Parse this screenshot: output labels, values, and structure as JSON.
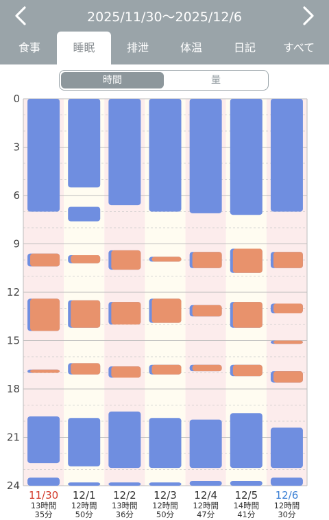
{
  "header": {
    "date_range": "2025/11/30〜2025/12/6",
    "prev_icon": "chevron-left-icon",
    "next_icon": "chevron-right-icon",
    "background": "#9aa4a9"
  },
  "tabs": [
    {
      "label": "食事",
      "active": false
    },
    {
      "label": "睡眠",
      "active": true
    },
    {
      "label": "排泄",
      "active": false
    },
    {
      "label": "体温",
      "active": false
    },
    {
      "label": "日記",
      "active": false
    },
    {
      "label": "すべて",
      "active": false
    }
  ],
  "segment": {
    "time_label": "時間",
    "amount_label": "量",
    "selected": "時間"
  },
  "chart_data": {
    "type": "bar",
    "y_ticks": [
      "0",
      "3",
      "6",
      "9",
      "12",
      "15",
      "18",
      "21",
      "24"
    ],
    "ylim": [
      0,
      24
    ],
    "colors": {
      "sleep": "#6f8ee0",
      "awake": "#e8926c",
      "col_pink": "#fcecec",
      "col_cream": "#fffcf1"
    },
    "days": [
      {
        "date": "11/30",
        "hours": "13時間",
        "minutes": "35分",
        "color": "#d23a2a",
        "bg": "pink",
        "sleep": [
          [
            0,
            7
          ],
          [
            9.6,
            10.4
          ],
          [
            12.4,
            14.4
          ],
          [
            16.8,
            17.0
          ],
          [
            19.7,
            22.6
          ],
          [
            23.5,
            24
          ]
        ],
        "awake": [
          [
            9.6,
            10.4
          ],
          [
            12.4,
            14.4
          ],
          [
            16.8,
            17.0
          ]
        ]
      },
      {
        "date": "12/1",
        "hours": "12時間",
        "minutes": "50分",
        "color": "#333333",
        "bg": "cream",
        "sleep": [
          [
            0,
            5.5
          ],
          [
            6.7,
            7.6
          ],
          [
            9.7,
            10.2
          ],
          [
            12.5,
            14.2
          ],
          [
            16.4,
            17.1
          ],
          [
            19.8,
            22.8
          ],
          [
            23.8,
            24
          ]
        ],
        "awake": [
          [
            9.7,
            10.2
          ],
          [
            12.5,
            14.2
          ],
          [
            16.4,
            17.1
          ]
        ]
      },
      {
        "date": "12/2",
        "hours": "13時間",
        "minutes": "36分",
        "color": "#333333",
        "bg": "pink",
        "sleep": [
          [
            0,
            6.6
          ],
          [
            9.4,
            10.6
          ],
          [
            12.6,
            14.0
          ],
          [
            16.6,
            17.3
          ],
          [
            19.4,
            22.9
          ],
          [
            23.8,
            24
          ]
        ],
        "awake": [
          [
            9.4,
            10.6
          ],
          [
            12.6,
            14.0
          ],
          [
            16.6,
            17.3
          ]
        ]
      },
      {
        "date": "12/3",
        "hours": "12時間",
        "minutes": "50分",
        "color": "#333333",
        "bg": "cream",
        "sleep": [
          [
            0,
            7
          ],
          [
            9.8,
            10.1
          ],
          [
            12.4,
            13.9
          ],
          [
            16.5,
            17.1
          ],
          [
            19.8,
            22.9
          ],
          [
            23.8,
            24
          ]
        ],
        "awake": [
          [
            9.8,
            10.1
          ],
          [
            12.4,
            13.9
          ],
          [
            16.5,
            17.1
          ]
        ]
      },
      {
        "date": "12/4",
        "hours": "12時間",
        "minutes": "47分",
        "color": "#333333",
        "bg": "pink",
        "sleep": [
          [
            0,
            7.1
          ],
          [
            9.5,
            10.5
          ],
          [
            12.8,
            13.5
          ],
          [
            16.5,
            16.9
          ],
          [
            19.9,
            22.9
          ],
          [
            23.7,
            24
          ]
        ],
        "awake": [
          [
            9.5,
            10.5
          ],
          [
            12.8,
            13.5
          ],
          [
            16.5,
            16.9
          ]
        ]
      },
      {
        "date": "12/5",
        "hours": "14時間",
        "minutes": "41分",
        "color": "#333333",
        "bg": "cream",
        "sleep": [
          [
            0,
            7.2
          ],
          [
            9.3,
            10.8
          ],
          [
            12.6,
            14.2
          ],
          [
            16.5,
            17.2
          ],
          [
            19.5,
            22.9
          ],
          [
            23.7,
            24
          ]
        ],
        "awake": [
          [
            9.3,
            10.8
          ],
          [
            12.6,
            14.2
          ],
          [
            16.5,
            17.2
          ]
        ]
      },
      {
        "date": "12/6",
        "hours": "12時間",
        "minutes": "30分",
        "color": "#3a7fd4",
        "bg": "pink",
        "sleep": [
          [
            0,
            7
          ],
          [
            9.5,
            10.5
          ],
          [
            12.7,
            13.3
          ],
          [
            15.0,
            15.2
          ],
          [
            16.9,
            17.6
          ],
          [
            20.4,
            22.9
          ],
          [
            23.5,
            24
          ]
        ],
        "awake": [
          [
            9.5,
            10.5
          ],
          [
            12.7,
            13.3
          ],
          [
            15.0,
            15.2
          ],
          [
            16.9,
            17.6
          ]
        ]
      }
    ]
  }
}
